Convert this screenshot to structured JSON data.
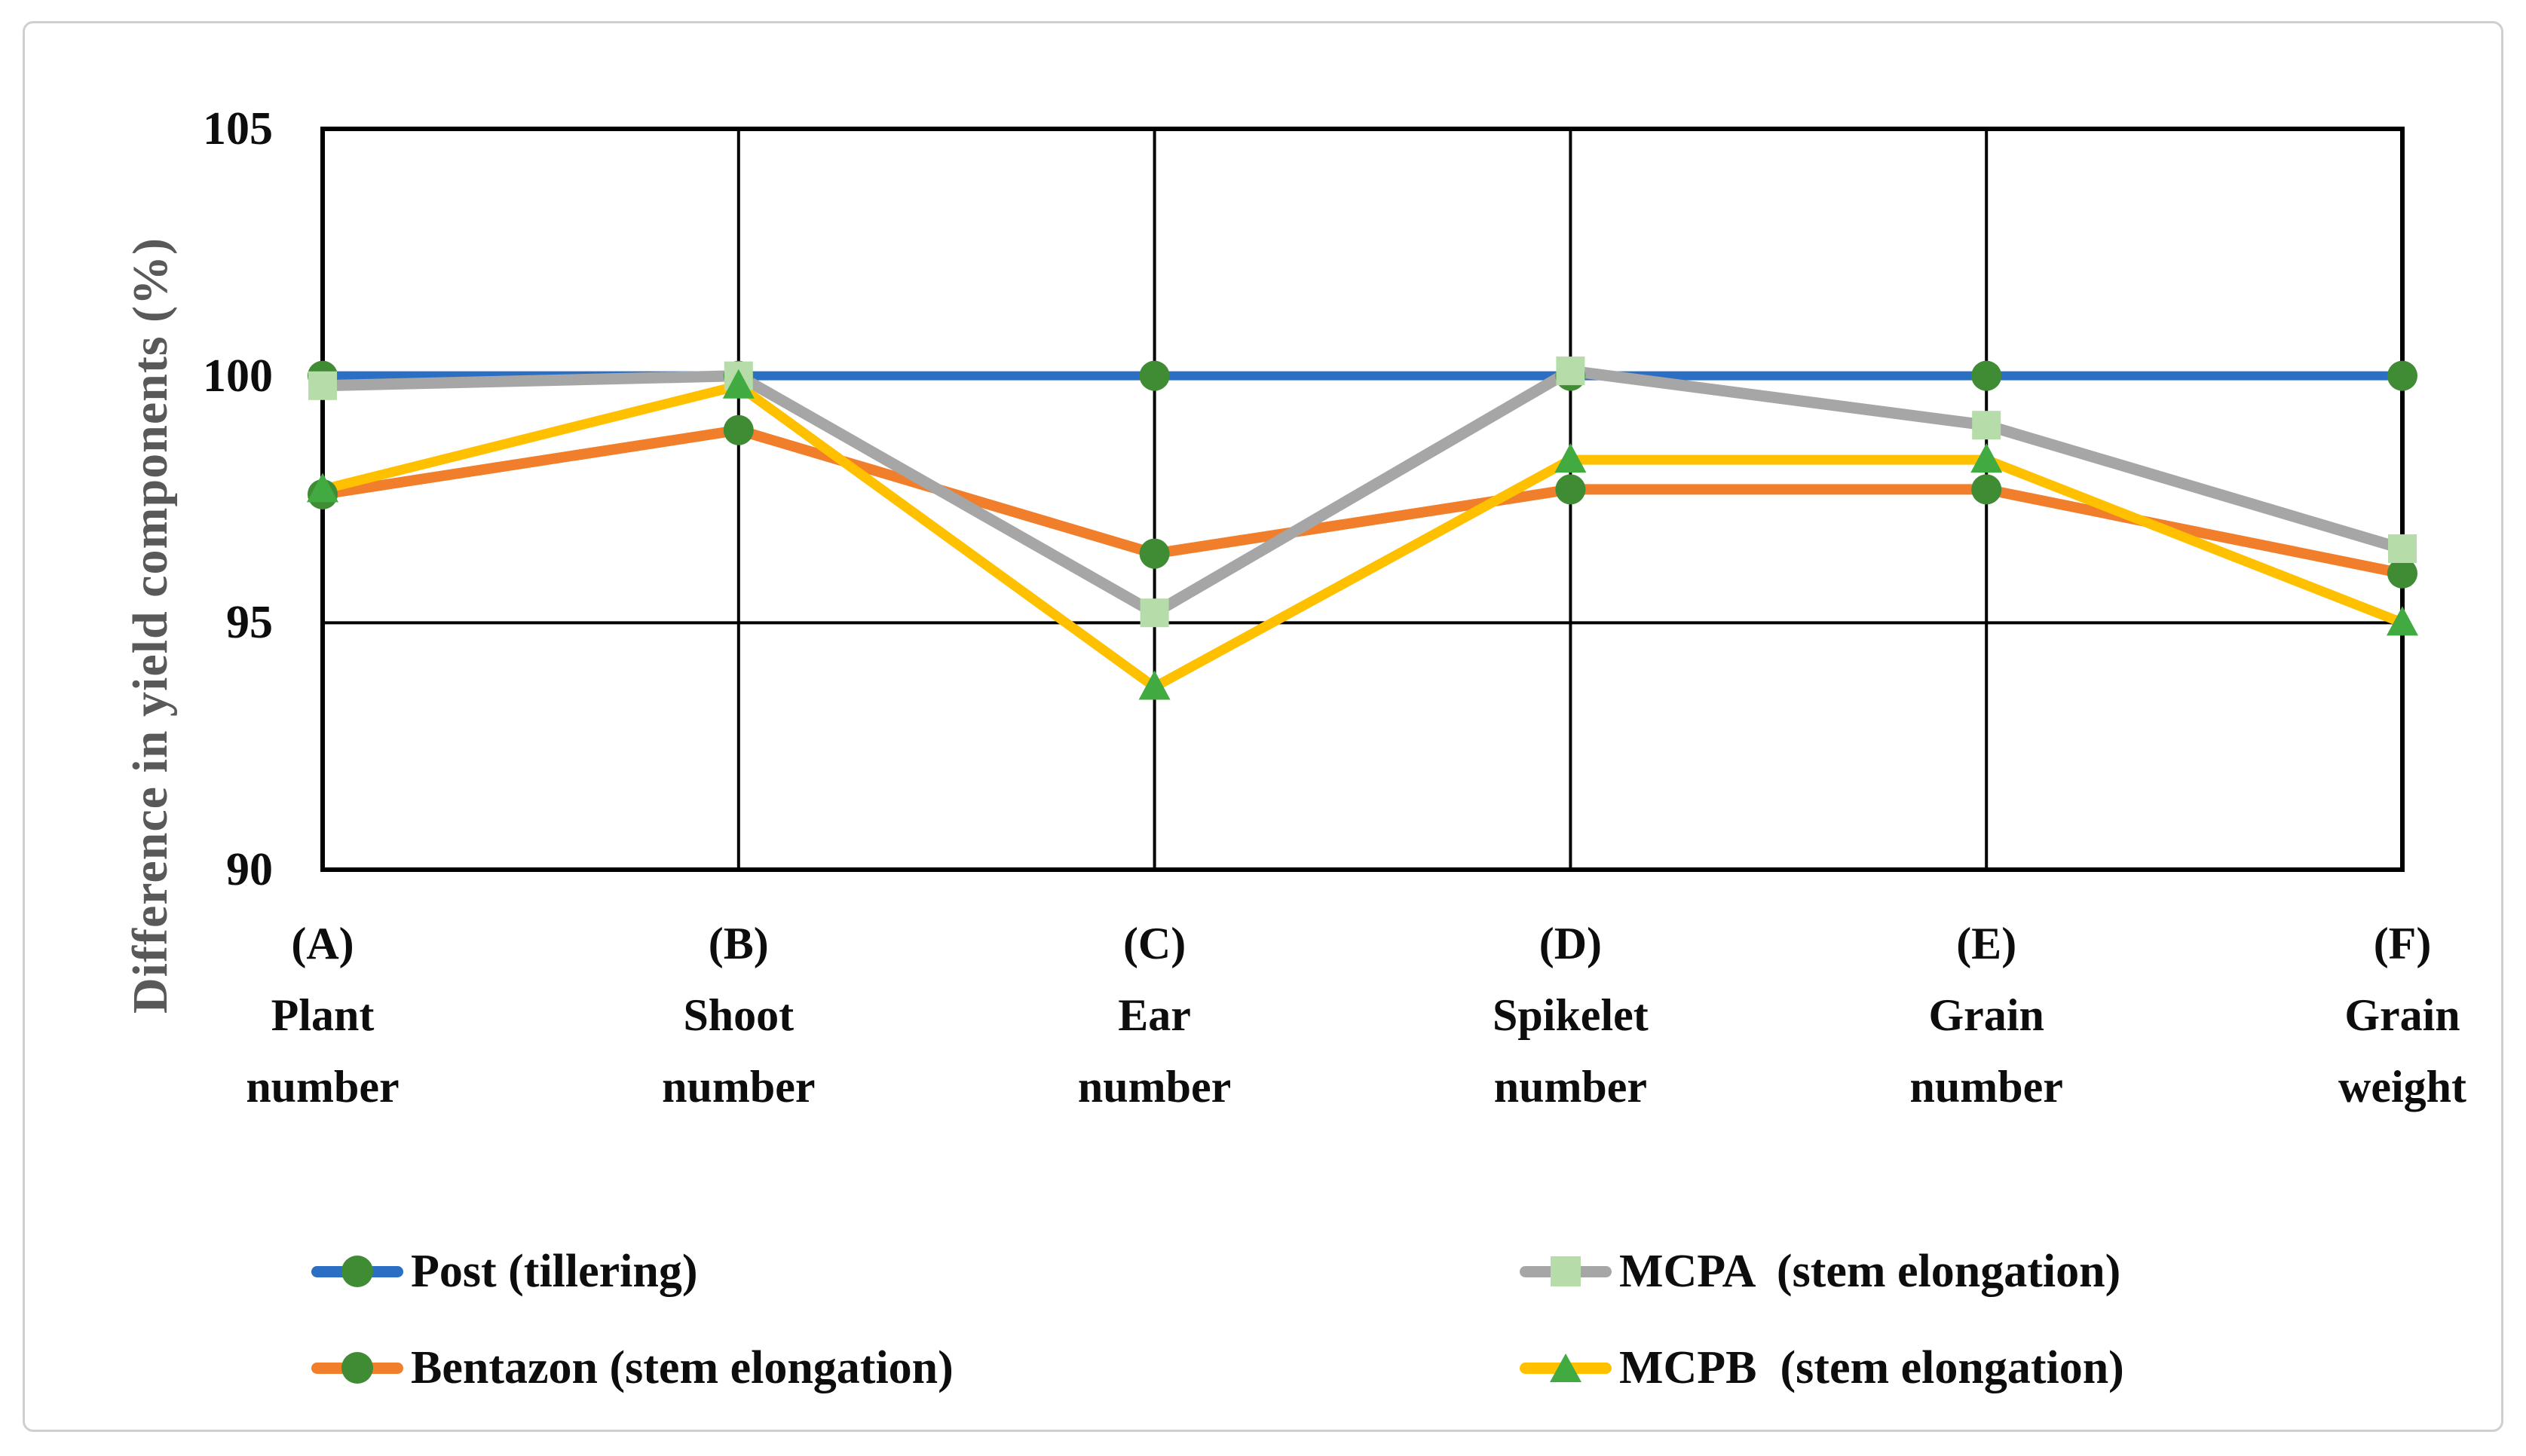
{
  "figure": {
    "border_color": "#cfcfcf",
    "background": "#ffffff"
  },
  "chart_data": {
    "type": "line",
    "title": "",
    "xlabel": "",
    "ylabel": "Difference in yield components (%)",
    "ylim": [
      90,
      105
    ],
    "yticks": [
      {
        "value": 105,
        "label": "105"
      },
      {
        "value": 100,
        "label": "100"
      },
      {
        "value": 95,
        "label": "95"
      },
      {
        "value": 90,
        "label": "90"
      }
    ],
    "gridlines_y": [
      95,
      100
    ],
    "grid": "horizontal-major-and-vertical-category",
    "legend_position": "bottom-two-columns",
    "categories": [
      "(A) Plant number",
      "(B) Shoot number",
      "(C) Ear number",
      "(D) Spikelet number",
      "(E) Grain number",
      "(F) Grain weight"
    ],
    "category_lines": [
      [
        "(A)",
        "Plant",
        "number"
      ],
      [
        "(B)",
        "Shoot",
        "number"
      ],
      [
        "(C)",
        "Ear",
        "number"
      ],
      [
        "(D)",
        "Spikelet",
        "number"
      ],
      [
        "(E)",
        "Grain",
        "number"
      ],
      [
        "(F)",
        "Grain",
        "weight"
      ]
    ],
    "series": [
      {
        "name": "Post (tillering)",
        "color": "#2B6FC4",
        "marker": "circle",
        "marker_color": "#3F8C34",
        "values": [
          100,
          100,
          100,
          100,
          100,
          100
        ]
      },
      {
        "name": "Bentazon (stem elongation)",
        "color": "#F07E2B",
        "marker": "circle",
        "marker_color": "#3F8C34",
        "values": [
          97.6,
          98.9,
          96.4,
          97.7,
          97.7,
          96.0
        ]
      },
      {
        "name": "MCPA  (stem elongation)",
        "color": "#A6A6A6",
        "marker": "square",
        "marker_color": "#B5DCA9",
        "values": [
          99.8,
          100.0,
          95.2,
          100.1,
          99.0,
          96.5
        ]
      },
      {
        "name": "MCPB  (stem elongation)",
        "color": "#FFC000",
        "marker": "triangle",
        "marker_color": "#41AB41",
        "values": [
          97.7,
          99.8,
          93.7,
          98.3,
          98.3,
          95.0
        ]
      }
    ],
    "legend_order": [
      0,
      2,
      1,
      3
    ]
  }
}
